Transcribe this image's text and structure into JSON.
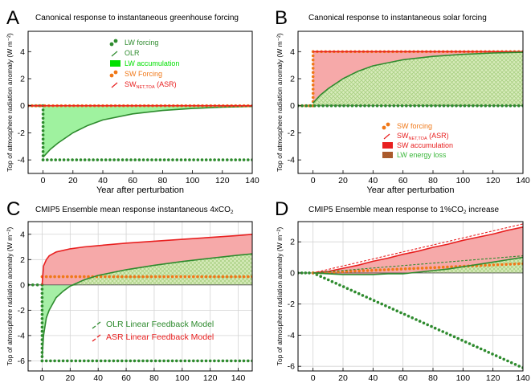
{
  "chart_data": [
    {
      "panel": "A",
      "type": "line",
      "title": "Canonical response to instantaneous greenhouse forcing",
      "xlabel": "Year after perturbation",
      "ylabel": "Top of atmosphere radiation anomaly (W m⁻²)",
      "xlim": [
        -10,
        140
      ],
      "ylim": [
        -5,
        5.5
      ],
      "xticks": [
        0,
        20,
        40,
        60,
        80,
        100,
        120,
        140
      ],
      "yticks": [
        -4,
        -2,
        0,
        2,
        4
      ],
      "grid": false,
      "legend_position": "top-center",
      "legend": [
        {
          "label": "LW forcing",
          "color": "#2e8b2e",
          "marker": "dots"
        },
        {
          "label": "OLR",
          "color": "#2e8b2e",
          "marker": "line"
        },
        {
          "label": "LW accumulation",
          "color": "#00e000",
          "marker": "fill"
        },
        {
          "label": "SW Forcing",
          "color": "#f07818",
          "marker": "dots"
        },
        {
          "label": "SW",
          "sub": "NET,TOA",
          "suffix": " (ASR)",
          "color": "#e82020",
          "marker": "line"
        }
      ],
      "series": [
        {
          "name": "LW forcing",
          "style": "dots",
          "color": "#2e8b2e",
          "x": [
            -10,
            0,
            0,
            140
          ],
          "y": [
            0,
            0,
            -4,
            -4
          ]
        },
        {
          "name": "OLR",
          "style": "line",
          "color": "#2e8b2e",
          "x": [
            0,
            5,
            10,
            20,
            30,
            40,
            60,
            80,
            100,
            120,
            140
          ],
          "y": [
            -3.8,
            -3.2,
            -2.75,
            -2.0,
            -1.45,
            -1.05,
            -0.6,
            -0.35,
            -0.2,
            -0.1,
            -0.05
          ]
        },
        {
          "name": "SW Forcing",
          "style": "dots",
          "color": "#f07818",
          "x": [
            -10,
            140
          ],
          "y": [
            0,
            0
          ]
        },
        {
          "name": "SW NET,TOA (ASR)",
          "style": "line",
          "color": "#e82020",
          "x": [
            -10,
            140
          ],
          "y": [
            0,
            0
          ]
        }
      ]
    },
    {
      "panel": "B",
      "type": "line",
      "title": "Canonical response to instantaneous solar forcing",
      "xlabel": "Year after perturbation",
      "ylabel": "Top of atmosphere radiation anomaly (W m⁻²)",
      "xlim": [
        -10,
        140
      ],
      "ylim": [
        -5,
        5.5
      ],
      "xticks": [
        0,
        20,
        40,
        60,
        80,
        100,
        120,
        140
      ],
      "yticks": [
        -4,
        -2,
        0,
        2,
        4
      ],
      "grid": false,
      "legend_position": "bottom-center",
      "legend": [
        {
          "label": "SW forcing",
          "color": "#f07818",
          "marker": "dots"
        },
        {
          "label": "SW",
          "sub": "NET,TOA",
          "suffix": " (ASR)",
          "color": "#e82020",
          "marker": "line"
        },
        {
          "label": "SW accumulation",
          "color": "#e82020",
          "marker": "fill"
        },
        {
          "label": "LW energy loss",
          "color": "#3cb83c",
          "marker": "hatch"
        }
      ],
      "series": [
        {
          "name": "SW forcing",
          "style": "dots",
          "color": "#f07818",
          "x": [
            -10,
            0,
            0,
            140
          ],
          "y": [
            0,
            0,
            4,
            4
          ]
        },
        {
          "name": "SW NET,TOA (ASR)",
          "style": "line",
          "color": "#e82020",
          "x": [
            0,
            140
          ],
          "y": [
            4,
            4
          ]
        },
        {
          "name": "OLR",
          "style": "line",
          "color": "#2e8b2e",
          "x": [
            0,
            5,
            10,
            20,
            30,
            40,
            60,
            80,
            100,
            120,
            140
          ],
          "y": [
            0.2,
            0.8,
            1.25,
            2.0,
            2.55,
            2.95,
            3.4,
            3.65,
            3.8,
            3.9,
            3.95
          ]
        },
        {
          "name": "LW forcing",
          "style": "dots",
          "color": "#2e8b2e",
          "x": [
            -10,
            140
          ],
          "y": [
            0,
            0
          ]
        }
      ]
    },
    {
      "panel": "C",
      "type": "line",
      "title": "CMIP5 Ensemble mean response instantaneous 4xCO",
      "title_sub": "2",
      "xlabel": "Year after perturbation",
      "ylabel": "Top of atmosphere radiation anomaly (W m⁻²)",
      "xlim": [
        -10,
        150
      ],
      "ylim": [
        -6.8,
        5.0
      ],
      "xticks": [
        0,
        20,
        40,
        60,
        80,
        100,
        120,
        140
      ],
      "yticks": [
        -6,
        -4,
        -2,
        0,
        2,
        4
      ],
      "grid": true,
      "legend_position": "center",
      "legend": [
        {
          "label": "OLR Linear Feedback Model",
          "color": "#2e8b2e",
          "marker": "dash"
        },
        {
          "label": "ASR Linear Feedback Model",
          "color": "#e82020",
          "marker": "dash"
        }
      ],
      "series": [
        {
          "name": "CO2 forcing",
          "style": "dots",
          "color": "#2e8b2e",
          "x": [
            -10,
            0,
            0,
            150
          ],
          "y": [
            0,
            0,
            -6.0,
            -6.0
          ]
        },
        {
          "name": "SW forcing",
          "style": "dots",
          "color": "#f07818",
          "x": [
            0,
            150
          ],
          "y": [
            0.65,
            0.65
          ]
        },
        {
          "name": "ASR",
          "style": "line",
          "color": "#e82020",
          "x": [
            0,
            1,
            3,
            5,
            10,
            20,
            30,
            40,
            60,
            80,
            100,
            120,
            140,
            150
          ],
          "y": [
            0,
            1.5,
            2.0,
            2.3,
            2.6,
            2.85,
            3.0,
            3.1,
            3.3,
            3.45,
            3.6,
            3.75,
            3.9,
            4.0
          ]
        },
        {
          "name": "OLR",
          "style": "line",
          "color": "#2e8b2e",
          "x": [
            0,
            1,
            3,
            5,
            10,
            15,
            20,
            30,
            40,
            60,
            80,
            100,
            120,
            140,
            150
          ],
          "y": [
            -5.8,
            -4.0,
            -2.6,
            -2.0,
            -1.0,
            -0.5,
            -0.1,
            0.4,
            0.75,
            1.2,
            1.55,
            1.85,
            2.1,
            2.35,
            2.45
          ]
        }
      ]
    },
    {
      "panel": "D",
      "type": "line",
      "title": "CMIP5 Ensemble mean response to 1%CO",
      "title_sub": "2",
      "title_suffix": " increase",
      "xlabel": "Year after perturbation",
      "ylabel": "Top of atmosphere radiation anomaly (W m⁻²)",
      "xlim": [
        -10,
        140
      ],
      "ylim": [
        -6.3,
        3.3
      ],
      "xticks": [
        0,
        20,
        40,
        60,
        80,
        100,
        120,
        140
      ],
      "yticks": [
        -6,
        -4,
        -2,
        0,
        2
      ],
      "grid": true,
      "series": [
        {
          "name": "CO2 forcing",
          "style": "dots",
          "color": "#2e8b2e",
          "x": [
            -10,
            0,
            140
          ],
          "y": [
            0,
            0,
            -6.1
          ]
        },
        {
          "name": "SW forcing",
          "style": "dots",
          "color": "#f07818",
          "x": [
            0,
            140
          ],
          "y": [
            0,
            0.6
          ]
        },
        {
          "name": "ASR",
          "style": "line",
          "color": "#e82020",
          "x": [
            0,
            10,
            20,
            30,
            40,
            50,
            60,
            70,
            80,
            90,
            100,
            110,
            120,
            130,
            140
          ],
          "y": [
            0,
            0.1,
            0.3,
            0.5,
            0.75,
            0.95,
            1.2,
            1.4,
            1.65,
            1.85,
            2.1,
            2.3,
            2.5,
            2.75,
            2.95
          ]
        },
        {
          "name": "ASR Linear Feedback Model",
          "style": "dash",
          "color": "#e82020",
          "x": [
            0,
            140
          ],
          "y": [
            0,
            3.15
          ]
        },
        {
          "name": "OLR",
          "style": "line",
          "color": "#2e8b2e",
          "x": [
            0,
            10,
            20,
            30,
            40,
            50,
            60,
            70,
            80,
            90,
            100,
            110,
            120,
            130,
            140
          ],
          "y": [
            0,
            -0.05,
            -0.1,
            -0.1,
            -0.1,
            -0.05,
            -0.05,
            0.05,
            0.15,
            0.25,
            0.4,
            0.55,
            0.7,
            0.85,
            1.0
          ]
        },
        {
          "name": "OLR Linear Feedback Model",
          "style": "dash",
          "color": "#2e8b2e",
          "x": [
            0,
            140
          ],
          "y": [
            0,
            1.1
          ]
        }
      ]
    }
  ]
}
